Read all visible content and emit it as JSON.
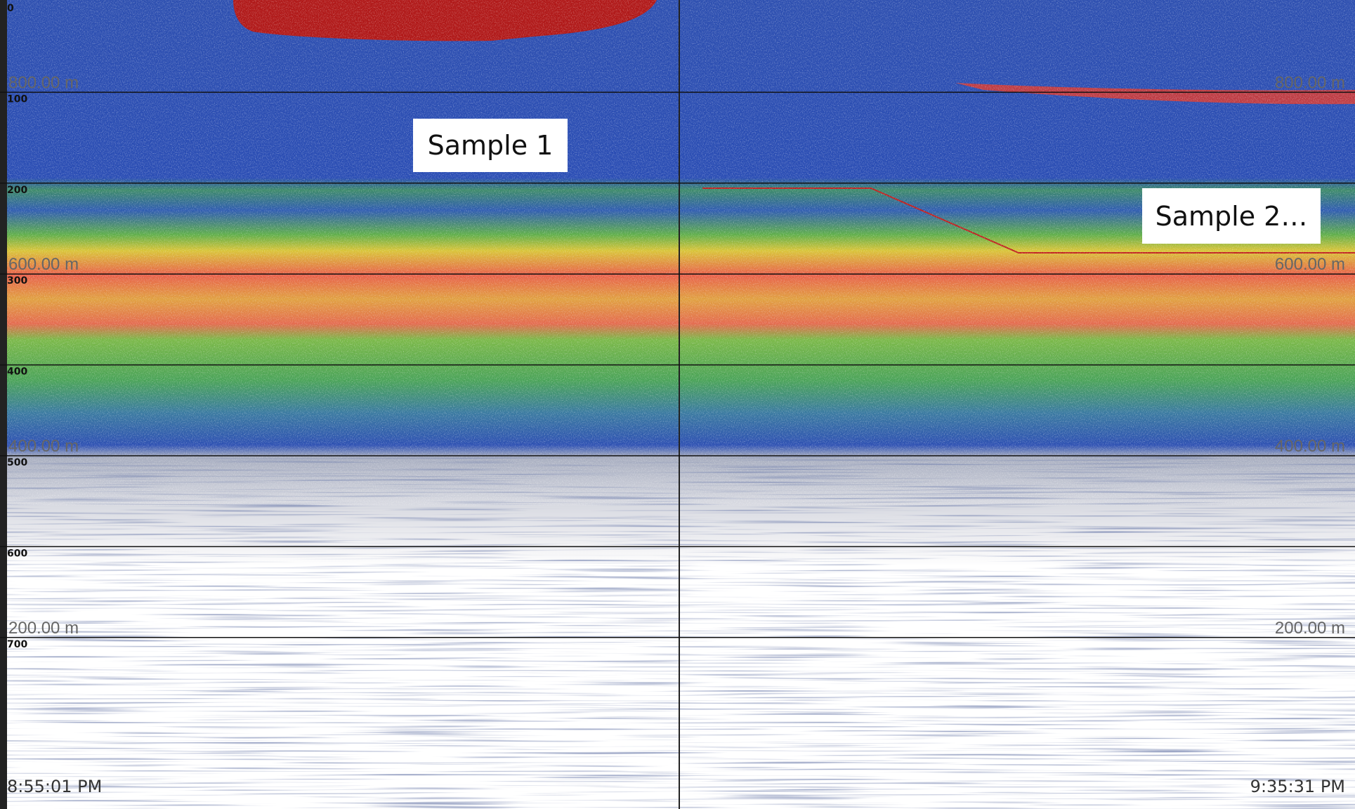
{
  "echogram": {
    "depth_labels": [
      "0",
      "100",
      "200",
      "300",
      "400",
      "500",
      "600",
      "700"
    ],
    "range_labels": [
      "800.00 m",
      "600.00 m",
      "400.00 m",
      "200.00 m"
    ],
    "time_start": "8:55:01 PM",
    "time_end": "9:35:31 PM"
  },
  "annotations": [
    "Sample 1",
    "Sample 2…"
  ]
}
